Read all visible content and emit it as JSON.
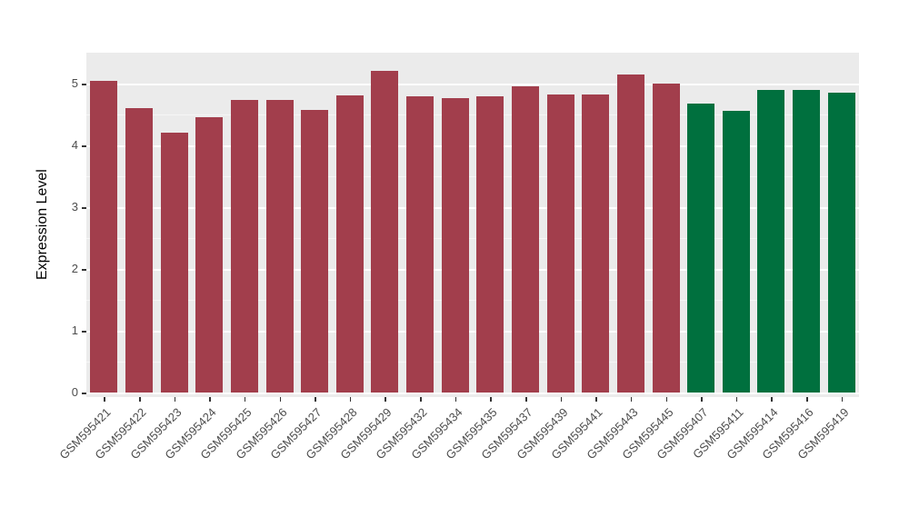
{
  "chart_data": {
    "type": "bar",
    "title": "",
    "xlabel": "",
    "ylabel": "Expression Level",
    "ylim": [
      0,
      5.5
    ],
    "yticks": [
      0,
      1,
      2,
      3,
      4,
      5
    ],
    "grid": "horizontal white major and minor on gray panel",
    "legend_position": "none",
    "panel_background": "#EBEBEB",
    "palette": {
      "group_red": "#A23E4C",
      "group_green": "#00703E"
    },
    "categories": [
      "GSM595421",
      "GSM595422",
      "GSM595423",
      "GSM595424",
      "GSM595425",
      "GSM595426",
      "GSM595427",
      "GSM595428",
      "GSM595429",
      "GSM595432",
      "GSM595434",
      "GSM595435",
      "GSM595437",
      "GSM595439",
      "GSM595441",
      "GSM595443",
      "GSM595445",
      "GSM595407",
      "GSM595411",
      "GSM595414",
      "GSM595416",
      "GSM595419"
    ],
    "values": [
      5.05,
      4.6,
      4.2,
      4.45,
      4.74,
      4.74,
      4.57,
      4.81,
      5.2,
      4.8,
      4.77,
      4.8,
      4.96,
      4.83,
      4.83,
      5.15,
      5.0,
      4.68,
      4.56,
      4.9,
      4.89,
      4.85
    ],
    "bar_colors": [
      "#A23E4C",
      "#A23E4C",
      "#A23E4C",
      "#A23E4C",
      "#A23E4C",
      "#A23E4C",
      "#A23E4C",
      "#A23E4C",
      "#A23E4C",
      "#A23E4C",
      "#A23E4C",
      "#A23E4C",
      "#A23E4C",
      "#A23E4C",
      "#A23E4C",
      "#A23E4C",
      "#A23E4C",
      "#00703E",
      "#00703E",
      "#00703E",
      "#00703E",
      "#00703E"
    ]
  }
}
